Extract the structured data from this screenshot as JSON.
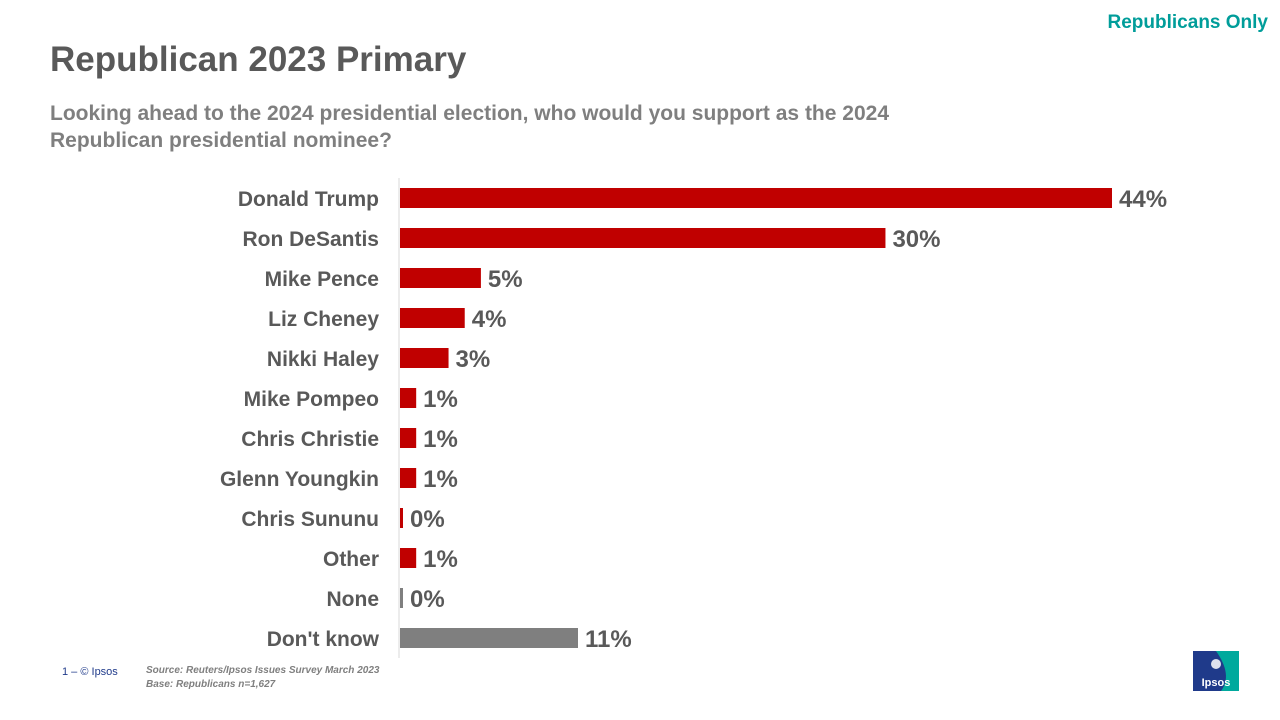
{
  "header": {
    "tag": "Republicans Only",
    "title": "Republican 2023 Primary",
    "subtitle": "Looking ahead to the 2024 presidential election, who would you support as the 2024 Republican presidential nominee?"
  },
  "chart_data": {
    "type": "bar",
    "orientation": "horizontal",
    "categories": [
      "Donald Trump",
      "Ron DeSantis",
      "Mike Pence",
      "Liz Cheney",
      "Nikki Haley",
      "Mike Pompeo",
      "Chris Christie",
      "Glenn Youngkin",
      "Chris Sununu",
      "Other",
      "None",
      "Don't know"
    ],
    "values": [
      44,
      30,
      5,
      4,
      3,
      1,
      1,
      1,
      0,
      1,
      0,
      11
    ],
    "value_labels": [
      "44%",
      "30%",
      "5%",
      "4%",
      "3%",
      "1%",
      "1%",
      "1%",
      "0%",
      "1%",
      "0%",
      "11%"
    ],
    "bar_colors": [
      "#c00000",
      "#c00000",
      "#c00000",
      "#c00000",
      "#c00000",
      "#c00000",
      "#c00000",
      "#c00000",
      "#c00000",
      "#c00000",
      "#7f7f7f",
      "#7f7f7f"
    ],
    "title": "",
    "xlabel": "",
    "ylabel": "",
    "xlim": [
      0,
      44
    ],
    "grid": false,
    "legend": "none"
  },
  "footer": {
    "page": "1 –  © Ipsos",
    "source_line1": "Source: Reuters/Ipsos Issues  Survey March 2023",
    "source_line2": "Base: Republicans n=1,627",
    "logo_text": "Ipsos"
  },
  "colors": {
    "accent": "#009d9a",
    "bar_primary": "#c00000",
    "bar_neutral": "#7f7f7f",
    "text": "#595959",
    "logo_blue": "#1f3a8a",
    "logo_teal": "#00a99d"
  }
}
